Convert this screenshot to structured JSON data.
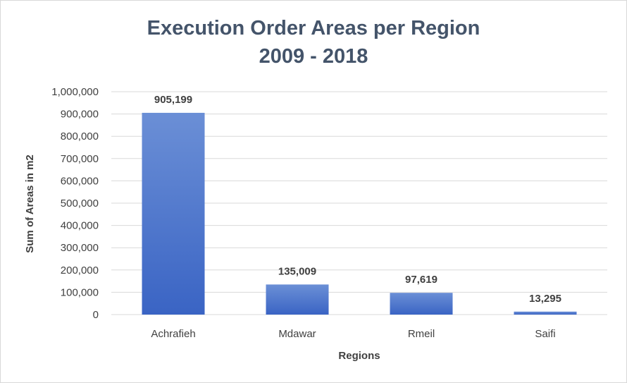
{
  "chart_data": {
    "type": "bar",
    "title": "Execution Order Areas per Region",
    "subtitle": "2009 - 2018",
    "xlabel": "Regions",
    "ylabel": "Sum of Areas in m2",
    "categories": [
      "Achrafieh",
      "Mdawar",
      "Rmeil",
      "Saifi"
    ],
    "values": [
      905199,
      135009,
      97619,
      13295
    ],
    "data_labels": [
      "905,199",
      "135,009",
      "97,619",
      "13,295"
    ],
    "ylim": [
      0,
      1000000
    ],
    "yticks": [
      0,
      100000,
      200000,
      300000,
      400000,
      500000,
      600000,
      700000,
      800000,
      900000,
      1000000
    ],
    "ytick_labels": [
      "0",
      "100,000",
      "200,000",
      "300,000",
      "400,000",
      "500,000",
      "600,000",
      "700,000",
      "800,000",
      "900,000",
      "1,000,000"
    ],
    "grid": true,
    "legend": "none",
    "colors": {
      "bar_top": "#6b8fd6",
      "bar_bottom": "#3a64c4",
      "grid": "#d9d9d9",
      "text": "#404040",
      "title": "#44546a"
    }
  }
}
